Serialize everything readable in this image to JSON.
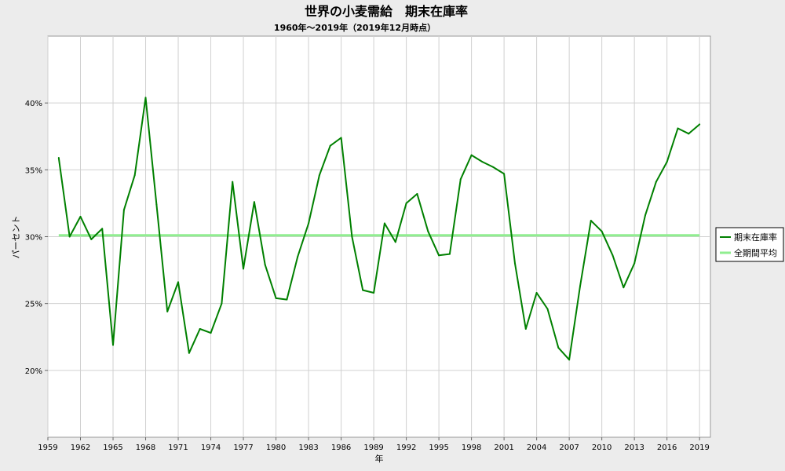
{
  "chart_data": {
    "type": "line",
    "title": "世界の小麦需給　期末在庫率",
    "subtitle": "1960年～2019年（2019年12月時点）",
    "xlabel": "年",
    "ylabel": "パーセント",
    "xlim": [
      1959,
      2020
    ],
    "ylim": [
      15,
      45
    ],
    "x_ticks": [
      1959,
      1962,
      1965,
      1968,
      1971,
      1974,
      1977,
      1980,
      1983,
      1986,
      1989,
      1992,
      1995,
      1998,
      2001,
      2004,
      2007,
      2010,
      2013,
      2016,
      2019
    ],
    "y_ticks": [
      20,
      25,
      30,
      35,
      40
    ],
    "y_tick_labels": [
      "20%",
      "25%",
      "30%",
      "35%",
      "40%"
    ],
    "grid": true,
    "legend_position": "right",
    "series": [
      {
        "name": "期末在庫率",
        "color": "#008000",
        "x": [
          1960,
          1961,
          1962,
          1963,
          1964,
          1965,
          1966,
          1967,
          1968,
          1969,
          1970,
          1971,
          1972,
          1973,
          1974,
          1975,
          1976,
          1977,
          1978,
          1979,
          1980,
          1981,
          1982,
          1983,
          1984,
          1985,
          1986,
          1987,
          1988,
          1989,
          1990,
          1991,
          1992,
          1993,
          1994,
          1995,
          1996,
          1997,
          1998,
          1999,
          2000,
          2001,
          2002,
          2003,
          2004,
          2005,
          2006,
          2007,
          2008,
          2009,
          2010,
          2011,
          2012,
          2013,
          2014,
          2015,
          2016,
          2017,
          2018,
          2019
        ],
        "values": [
          35.9,
          30.0,
          31.5,
          29.8,
          30.6,
          21.9,
          32.0,
          34.6,
          40.4,
          32.4,
          24.4,
          26.6,
          21.3,
          23.1,
          22.8,
          25.0,
          34.1,
          27.6,
          32.6,
          27.9,
          25.4,
          25.3,
          28.5,
          31.0,
          34.6,
          36.8,
          37.4,
          30.0,
          26.0,
          25.8,
          31.0,
          29.6,
          32.5,
          33.2,
          30.4,
          28.6,
          28.7,
          34.3,
          36.1,
          35.6,
          35.2,
          34.7,
          28.0,
          23.1,
          25.8,
          24.6,
          21.7,
          20.8,
          26.3,
          31.2,
          30.4,
          28.6,
          26.2,
          28.0,
          31.6,
          34.1,
          35.6,
          38.1,
          37.7,
          38.4
        ]
      },
      {
        "name": "全期間平均",
        "color": "#90ee90",
        "x": [
          1960,
          2019
        ],
        "values": [
          30.1,
          30.1
        ]
      }
    ]
  }
}
